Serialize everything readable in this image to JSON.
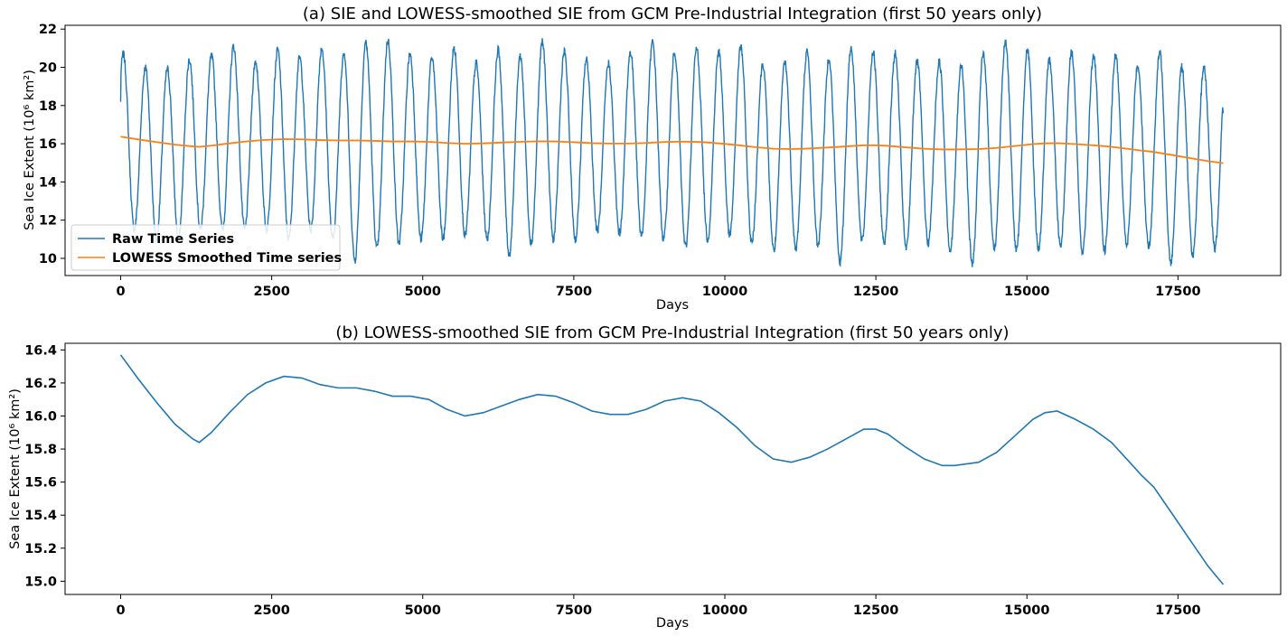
{
  "colors": {
    "raw": "#1f77b4",
    "smooth": "#ff7f0e",
    "axes": "#000000"
  },
  "chart_data": [
    {
      "type": "line",
      "title": "(a) SIE and LOWESS-smoothed SIE from GCM Pre-Industrial Integration (first 50 years only)",
      "xlabel": "Days",
      "ylabel": "Sea Ice Extent (10⁶ km²)",
      "xlim": [
        -920,
        19200
      ],
      "ylim": [
        9.1,
        22.2
      ],
      "xticks": [
        0,
        2500,
        5000,
        7500,
        10000,
        12500,
        15000,
        17500
      ],
      "yticks": [
        10,
        12,
        14,
        16,
        18,
        20,
        22
      ],
      "grid": false,
      "legend": "lower-left",
      "series": [
        {
          "name": "Raw Time Series",
          "kind": "seasonal-cycle",
          "period_days": 365,
          "n_cycles": 50,
          "x_end": 18250,
          "start_value": 18.2,
          "end_value": 17.6,
          "cycle_max": [
            20.7,
            20.0,
            19.9,
            20.4,
            20.6,
            21.1,
            20.3,
            20.9,
            20.5,
            21.0,
            20.8,
            21.3,
            21.4,
            20.7,
            20.5,
            21.0,
            20.2,
            20.9,
            20.6,
            21.3,
            20.8,
            20.4,
            20.2,
            20.8,
            21.3,
            20.8,
            21.0,
            20.8,
            21.1,
            20.2,
            20.3,
            20.8,
            20.5,
            21.0,
            20.8,
            20.7,
            20.3,
            20.3,
            20.1,
            20.7,
            21.3,
            20.9,
            20.4,
            20.8,
            20.6,
            20.6,
            20.1,
            20.8,
            20.0,
            20.0
          ],
          "cycle_min": [
            11.5,
            11.0,
            11.0,
            11.5,
            11.5,
            11.5,
            11.5,
            11.0,
            11.5,
            11.0,
            9.9,
            10.5,
            10.8,
            11.0,
            11.0,
            11.2,
            11.0,
            10.2,
            10.8,
            11.0,
            11.0,
            11.4,
            11.3,
            11.2,
            11.0,
            10.6,
            11.0,
            11.2,
            10.8,
            10.4,
            10.5,
            10.7,
            9.8,
            10.9,
            10.8,
            10.5,
            10.8,
            10.4,
            9.7,
            10.5,
            10.4,
            10.5,
            10.7,
            10.3,
            10.4,
            10.7,
            10.6,
            9.8,
            10.2,
            10.5
          ]
        },
        {
          "name": "LOWESS Smoothed Time series",
          "x": [
            0,
            300,
            600,
            900,
            1200,
            1300,
            1500,
            1800,
            2100,
            2400,
            2700,
            3000,
            3300,
            3600,
            3900,
            4200,
            4500,
            4800,
            5100,
            5400,
            5700,
            6000,
            6300,
            6600,
            6900,
            7200,
            7500,
            7800,
            8100,
            8400,
            8700,
            9000,
            9300,
            9600,
            9900,
            10200,
            10500,
            10800,
            11100,
            11400,
            11700,
            12000,
            12300,
            12500,
            12700,
            13000,
            13300,
            13600,
            13800,
            14200,
            14500,
            14800,
            15100,
            15300,
            15500,
            15800,
            16100,
            16400,
            16700,
            16900,
            17100,
            17400,
            17700,
            18000,
            18250
          ],
          "y": [
            16.37,
            16.22,
            16.08,
            15.95,
            15.86,
            15.84,
            15.9,
            16.02,
            16.13,
            16.2,
            16.24,
            16.23,
            16.19,
            16.17,
            16.17,
            16.15,
            16.12,
            16.12,
            16.1,
            16.04,
            16.0,
            16.02,
            16.06,
            16.1,
            16.13,
            16.12,
            16.08,
            16.03,
            16.01,
            16.01,
            16.04,
            16.09,
            16.11,
            16.09,
            16.02,
            15.93,
            15.82,
            15.74,
            15.72,
            15.75,
            15.8,
            15.86,
            15.92,
            15.92,
            15.89,
            15.81,
            15.74,
            15.7,
            15.7,
            15.72,
            15.78,
            15.88,
            15.98,
            16.02,
            16.03,
            15.98,
            15.92,
            15.84,
            15.72,
            15.64,
            15.57,
            15.41,
            15.25,
            15.09,
            14.98
          ]
        }
      ]
    },
    {
      "type": "line",
      "title": "(b) LOWESS-smoothed SIE from GCM Pre-Industrial Integration (first 50 years only)",
      "xlabel": "Days",
      "ylabel": "Sea Ice Extent (10⁶ km²)",
      "xlim": [
        -920,
        19200
      ],
      "ylim": [
        14.92,
        16.44
      ],
      "xticks": [
        0,
        2500,
        5000,
        7500,
        10000,
        12500,
        15000,
        17500
      ],
      "yticks": [
        "15.0",
        "15.2",
        "15.4",
        "15.6",
        "15.8",
        "16.0",
        "16.2",
        "16.4"
      ],
      "grid": false,
      "series": [
        {
          "kind": "same-as-smoothed",
          "source_series": 1
        }
      ]
    }
  ]
}
